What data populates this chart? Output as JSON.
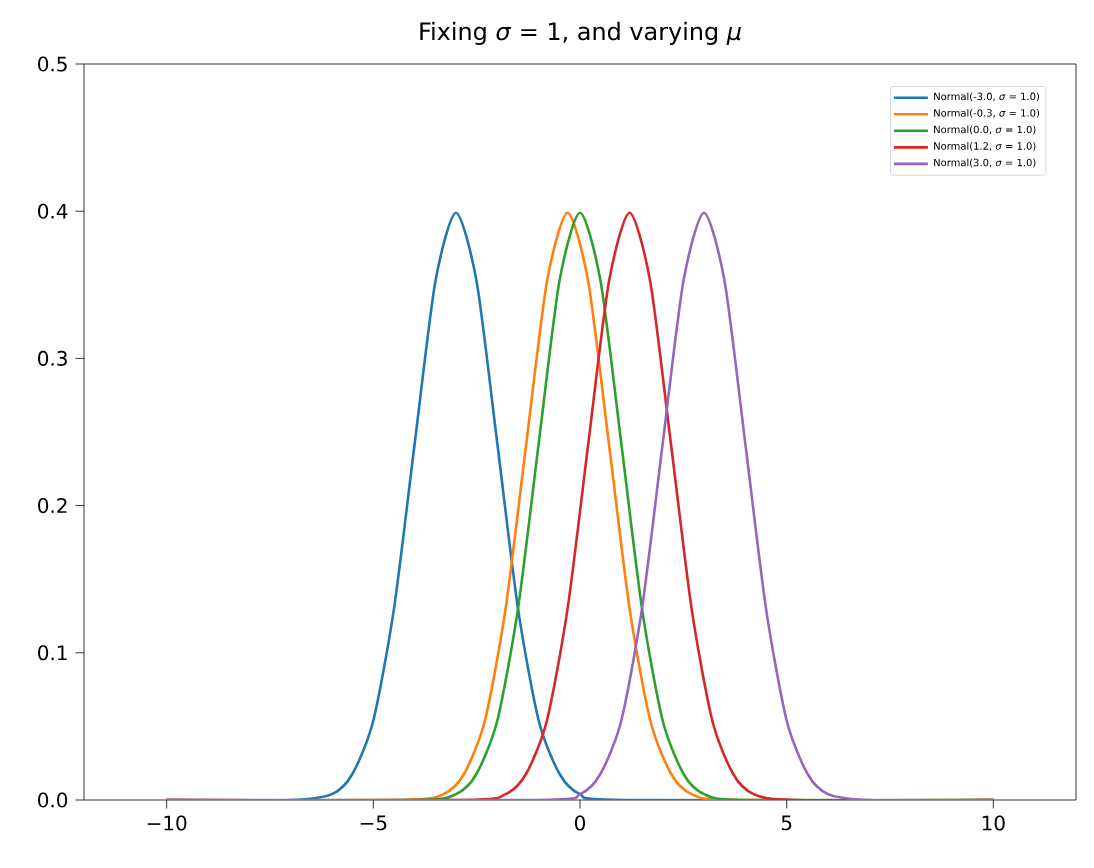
{
  "chart_data": {
    "type": "line",
    "title": "Fixing *σ* = 1, and varying *μ*",
    "xlim": [
      -12,
      12
    ],
    "ylim": [
      0,
      0.5
    ],
    "xticks": [
      {
        "value": -10,
        "label": "−10"
      },
      {
        "value": -5,
        "label": "−5"
      },
      0,
      5,
      10
    ],
    "yticks": [
      {
        "value": 0,
        "label": "0.0"
      },
      {
        "value": 0.1,
        "label": "0.1"
      },
      {
        "value": 0.2,
        "label": "0.2"
      },
      {
        "value": 0.3,
        "label": "0.3"
      },
      {
        "value": 0.4,
        "label": "0.4"
      },
      {
        "value": 0.5,
        "label": "0.5"
      }
    ],
    "legend": "top right",
    "grid": false,
    "marker": "none",
    "line_style": "solid",
    "series": [
      {
        "name": "Normal(-3.0, *σ* = 1.0)",
        "color": "#1f77b4",
        "x": [
          -10,
          -7,
          -6,
          -5.5,
          -5,
          -4.5,
          -4,
          -3.5,
          -3,
          -2.5,
          -2,
          -1.5,
          -1,
          -0.5,
          0,
          1,
          10
        ],
        "values": [
          0,
          0,
          0.004,
          0.018,
          0.054,
          0.13,
          0.242,
          0.352,
          0.399,
          0.352,
          0.242,
          0.13,
          0.054,
          0.018,
          0.004,
          0,
          0
        ]
      },
      {
        "name": "Normal(-0.3, *σ* = 1.0)",
        "color": "#ff7f0e",
        "x": [
          -10,
          -4.3,
          -3.3,
          -2.8,
          -2.3,
          -1.8,
          -1.3,
          -0.8,
          -0.3,
          0.2,
          0.7,
          1.2,
          1.7,
          2.2,
          2.7,
          3.7,
          10
        ],
        "values": [
          0,
          0,
          0.004,
          0.018,
          0.054,
          0.13,
          0.242,
          0.352,
          0.399,
          0.352,
          0.242,
          0.13,
          0.054,
          0.018,
          0.004,
          0,
          0
        ]
      },
      {
        "name": "Normal(0.0, *σ* = 1.0)",
        "color": "#2ca02c",
        "x": [
          -10,
          -4,
          -3,
          -2.5,
          -2,
          -1.5,
          -1,
          -0.5,
          0,
          0.5,
          1,
          1.5,
          2,
          2.5,
          3,
          4,
          10
        ],
        "values": [
          0,
          0,
          0.004,
          0.018,
          0.054,
          0.13,
          0.242,
          0.352,
          0.399,
          0.352,
          0.242,
          0.13,
          0.054,
          0.018,
          0.004,
          0,
          0
        ]
      },
      {
        "name": "Normal(1.2, *σ* = 1.0)",
        "color": "#d62728",
        "x": [
          -10,
          -2.8,
          -1.8,
          -1.3,
          -0.8,
          -0.3,
          0.2,
          0.7,
          1.2,
          1.7,
          2.2,
          2.7,
          3.2,
          3.7,
          4.2,
          5.2,
          10
        ],
        "values": [
          0,
          0,
          0.004,
          0.018,
          0.054,
          0.13,
          0.242,
          0.352,
          0.399,
          0.352,
          0.242,
          0.13,
          0.054,
          0.018,
          0.004,
          0,
          0
        ]
      },
      {
        "name": "Normal(3.0, *σ* = 1.0)",
        "color": "#9467bd",
        "x": [
          -10,
          -1,
          0,
          0.5,
          1,
          1.5,
          2,
          2.5,
          3,
          3.5,
          4,
          4.5,
          5,
          5.5,
          6,
          7,
          10
        ],
        "values": [
          0,
          0,
          0.004,
          0.018,
          0.054,
          0.13,
          0.242,
          0.352,
          0.399,
          0.352,
          0.242,
          0.13,
          0.054,
          0.018,
          0.004,
          0,
          0
        ]
      }
    ]
  }
}
